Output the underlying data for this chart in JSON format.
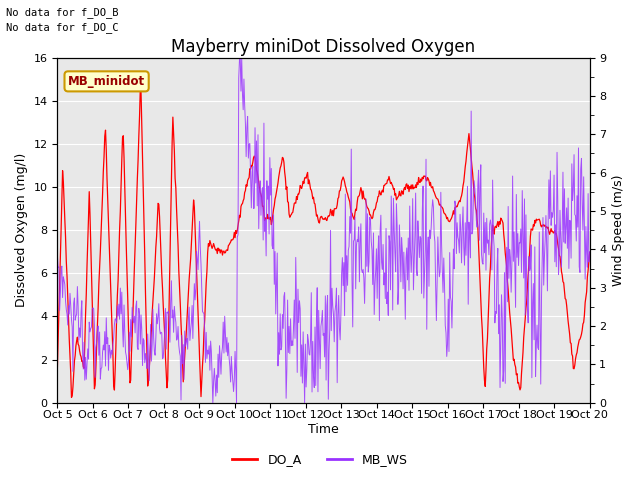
{
  "title": "Mayberry miniDot Dissolved Oxygen",
  "xlabel": "Time",
  "ylabel_left": "Dissolved Oxygen (mg/l)",
  "ylabel_right": "Wind Speed (m/s)",
  "ylim_left": [
    0,
    16
  ],
  "ylim_right": [
    0.0,
    9.0
  ],
  "yticks_left": [
    0,
    2,
    4,
    6,
    8,
    10,
    12,
    14,
    16
  ],
  "yticks_right": [
    0.0,
    1.0,
    2.0,
    3.0,
    4.0,
    5.0,
    6.0,
    7.0,
    8.0,
    9.0
  ],
  "xtick_labels": [
    "Oct 5",
    "Oct 6",
    "Oct 7",
    "Oct 8",
    "Oct 9",
    "Oct 10",
    "Oct 11",
    "Oct 12",
    "Oct 13",
    "Oct 14",
    "Oct 15",
    "Oct 16",
    "Oct 17",
    "Oct 18",
    "Oct 19",
    "Oct 20"
  ],
  "color_DO_A": "#ff0000",
  "color_MB_WS": "#9933ff",
  "legend_box_label": "MB_minidot",
  "legend_box_facecolor": "#ffffcc",
  "legend_box_edgecolor": "#cc9900",
  "legend_box_textcolor": "#990000",
  "annotation1": "No data for f_DO_B",
  "annotation2": "No data for f_DO_C",
  "bg_color": "#e8e8e8",
  "fig_facecolor": "#ffffff",
  "grid_color": "#ffffff",
  "title_fontsize": 12,
  "axis_fontsize": 9,
  "tick_fontsize": 8,
  "do_a_key_t": [
    0,
    0.15,
    0.4,
    0.55,
    0.75,
    0.9,
    1.05,
    1.35,
    1.6,
    1.85,
    2.05,
    2.35,
    2.55,
    2.85,
    3.1,
    3.25,
    3.55,
    3.85,
    4.05,
    4.25,
    4.55,
    4.75,
    5.05,
    5.25,
    5.55,
    5.85,
    6.05,
    6.35,
    6.55,
    6.85,
    7.05,
    7.35,
    7.55,
    7.85,
    8.05,
    8.35,
    8.55,
    8.85,
    9.05,
    9.35,
    9.55,
    9.85,
    10.05,
    10.35,
    10.55,
    10.85,
    11.05,
    11.4,
    11.6,
    11.85,
    12.05,
    12.25,
    12.55,
    12.85,
    13.05,
    13.35,
    13.55,
    13.85,
    14.05,
    14.35,
    14.55,
    14.85,
    15.0
  ],
  "do_a_key_v": [
    1.5,
    11.0,
    0.2,
    3.0,
    1.5,
    10.0,
    0.2,
    13.0,
    0.2,
    13.0,
    0.5,
    15.0,
    0.3,
    9.5,
    0.2,
    13.5,
    1.0,
    9.5,
    0.2,
    7.5,
    7.0,
    7.0,
    8.0,
    9.5,
    11.5,
    8.5,
    8.5,
    11.5,
    8.5,
    10.0,
    10.5,
    8.5,
    8.5,
    9.0,
    10.5,
    8.5,
    10.0,
    8.5,
    9.5,
    10.5,
    9.5,
    10.0,
    10.0,
    10.5,
    10.0,
    9.0,
    8.5,
    9.5,
    12.5,
    8.0,
    0.5,
    8.0,
    8.5,
    2.0,
    0.5,
    8.0,
    8.5,
    8.0,
    8.0,
    4.5,
    1.5,
    4.0,
    7.0
  ],
  "mb_ws_key_t": [
    0,
    0.2,
    0.4,
    0.6,
    0.8,
    1.0,
    1.2,
    1.5,
    1.8,
    2.0,
    2.2,
    2.5,
    2.8,
    3.0,
    3.2,
    3.5,
    3.8,
    4.0,
    4.2,
    4.5,
    4.7,
    5.0,
    5.05,
    5.1,
    5.15,
    5.2,
    5.3,
    5.4,
    5.5,
    5.6,
    5.7,
    5.8,
    5.9,
    6.0,
    6.2,
    6.5,
    6.8,
    7.0,
    7.2,
    7.5,
    7.8,
    8.0,
    8.2,
    8.5,
    8.7,
    9.0,
    9.3,
    9.5,
    9.8,
    10.0,
    10.3,
    10.5,
    10.8,
    11.0,
    11.2,
    11.5,
    11.8,
    12.0,
    12.3,
    12.5,
    12.8,
    13.0,
    13.3,
    13.5,
    13.8,
    14.0,
    14.2,
    14.5,
    14.8,
    15.0
  ],
  "mb_ws_key_v": [
    3.5,
    3.0,
    2.0,
    2.5,
    1.0,
    2.0,
    1.2,
    1.5,
    2.5,
    1.5,
    2.5,
    1.0,
    2.0,
    1.5,
    2.5,
    1.0,
    2.0,
    4.5,
    1.2,
    0.5,
    2.0,
    0.3,
    2.0,
    6.0,
    9.0,
    8.5,
    7.5,
    6.5,
    6.0,
    6.5,
    5.5,
    5.5,
    5.0,
    5.5,
    2.5,
    1.5,
    2.0,
    1.5,
    1.0,
    2.5,
    2.0,
    2.5,
    4.0,
    3.5,
    4.5,
    3.5,
    3.5,
    4.0,
    3.5,
    4.5,
    3.5,
    4.0,
    3.8,
    1.5,
    4.5,
    4.5,
    5.5,
    4.5,
    3.5,
    1.5,
    4.5,
    4.5,
    3.5,
    2.0,
    4.0,
    5.0,
    4.5,
    4.5,
    5.0,
    4.0
  ]
}
